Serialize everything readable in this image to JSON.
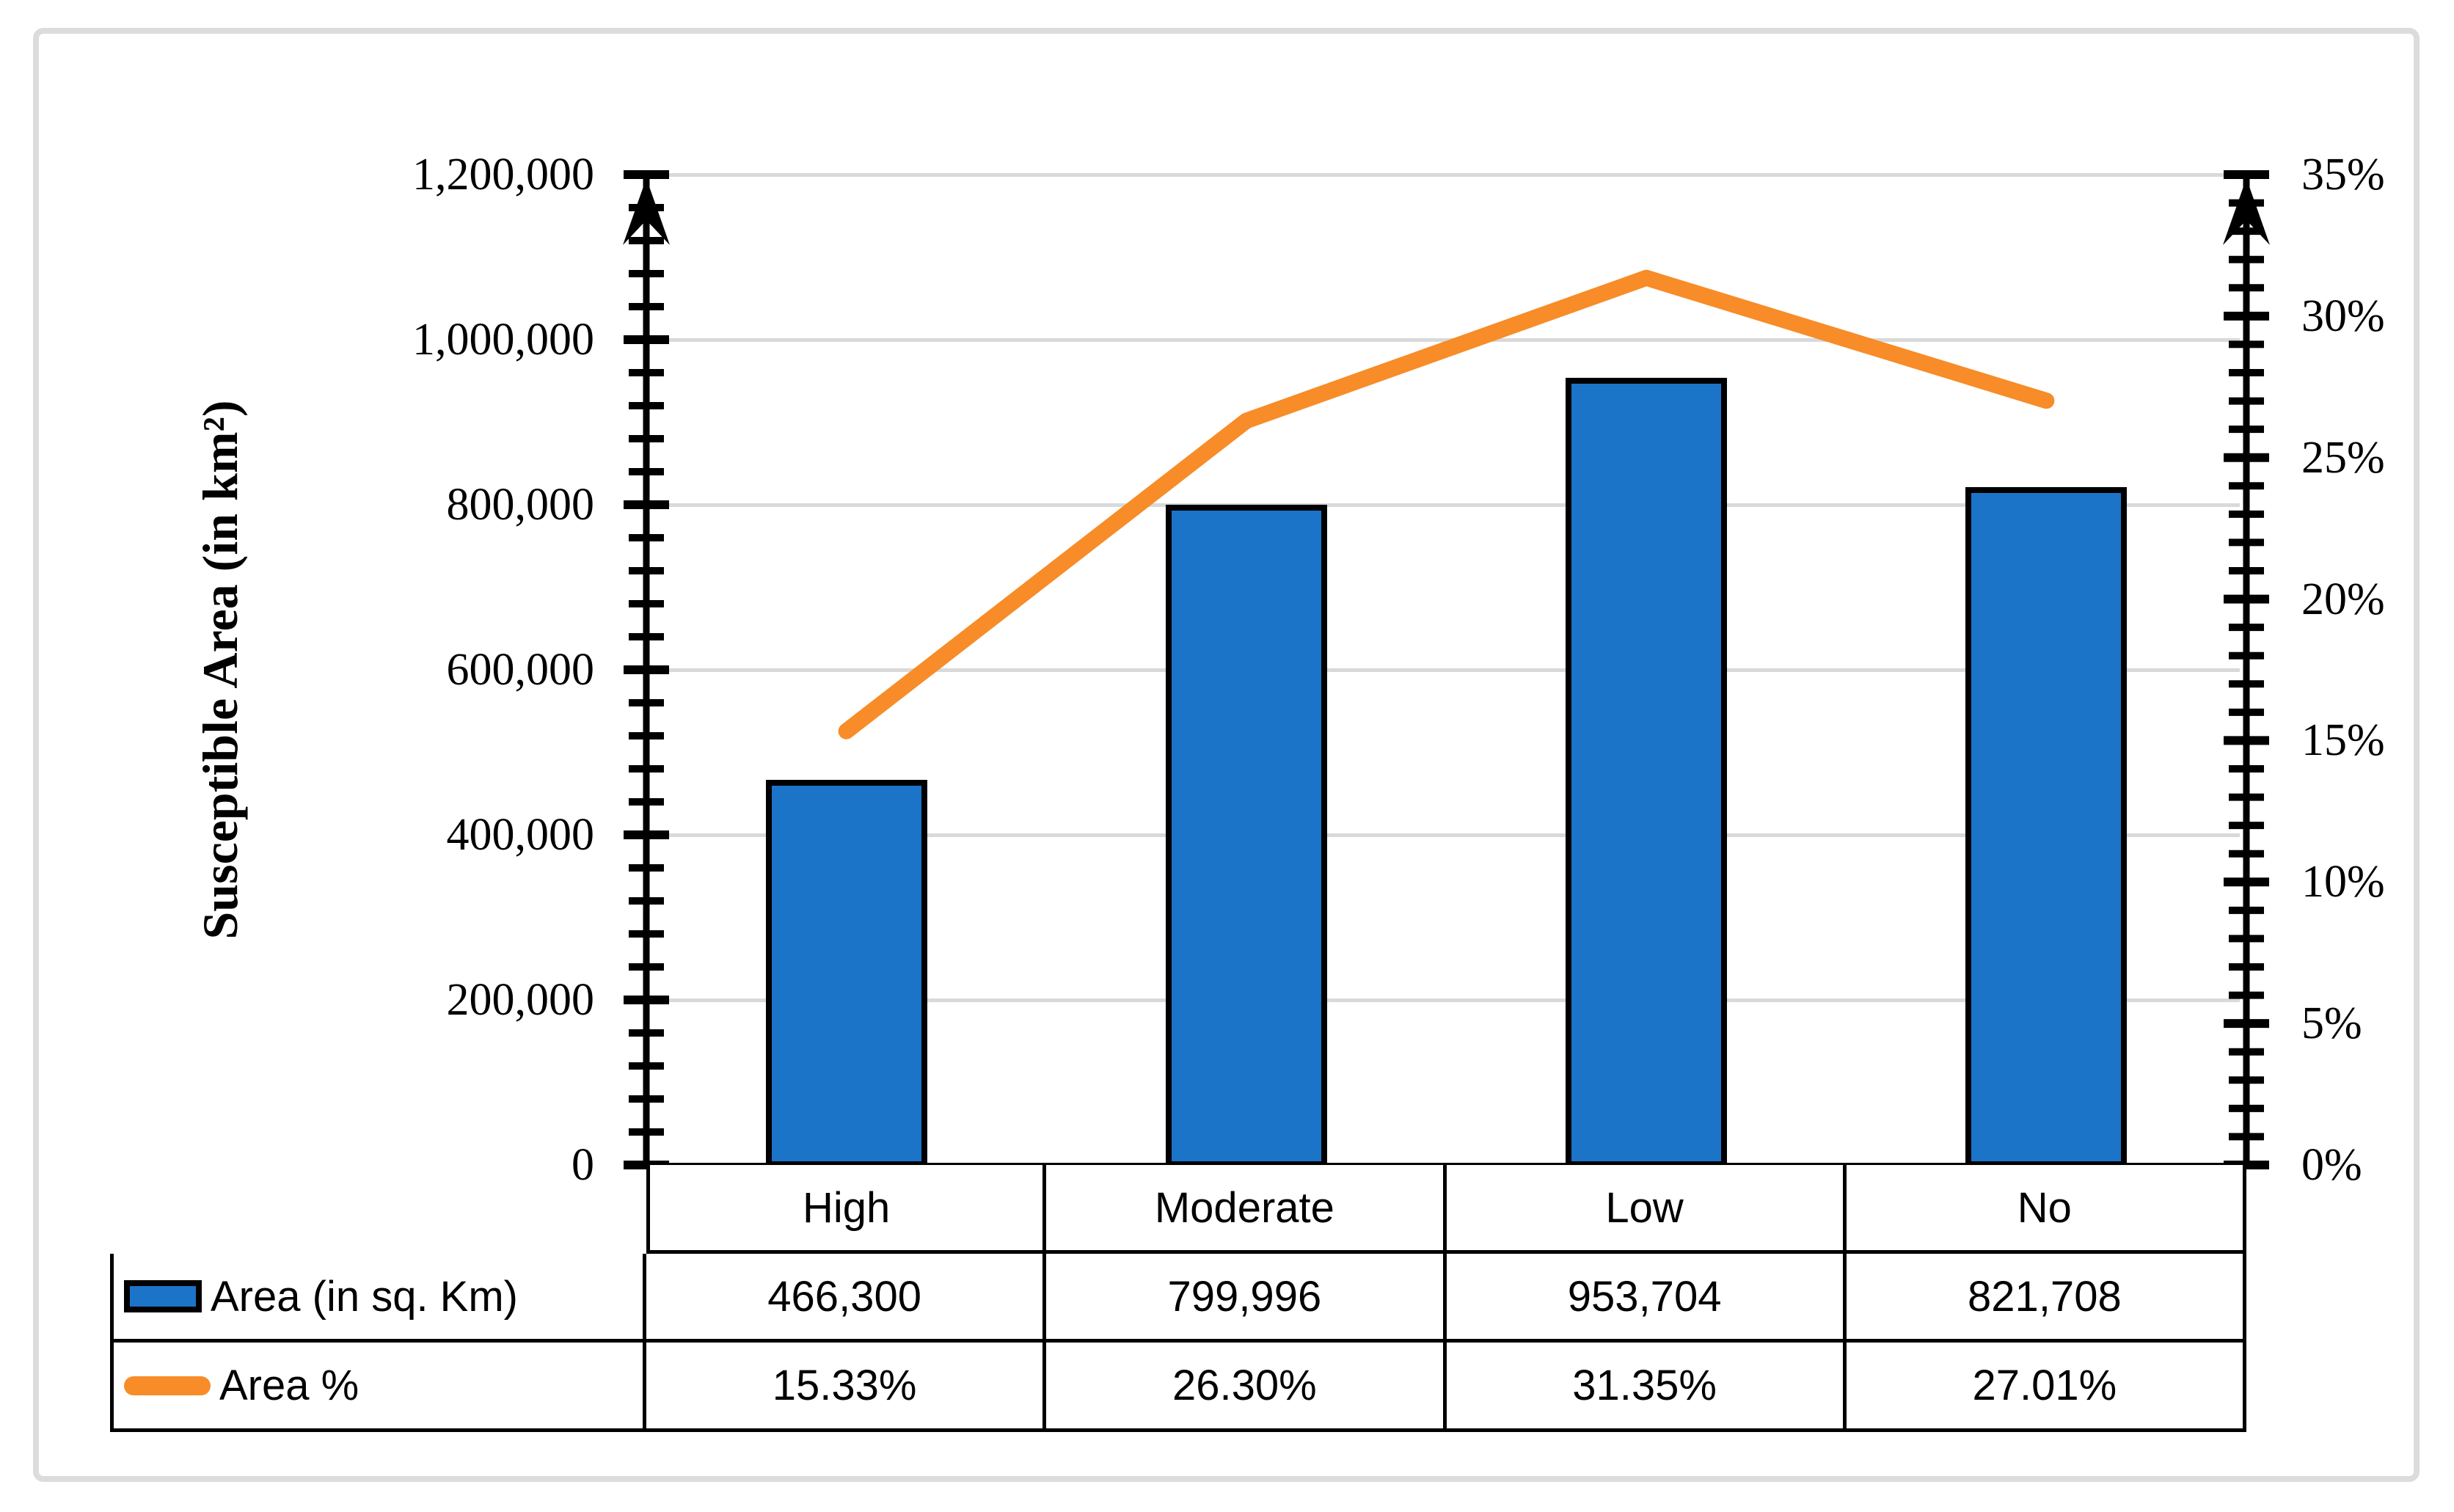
{
  "chart_data": {
    "type": "combo-bar-line",
    "title": "",
    "categories": [
      "High",
      "Moderate",
      "Low",
      "No"
    ],
    "series": [
      {
        "name": "Area (in sq. Km)",
        "chart_type": "bar",
        "axis": "left",
        "color": "#1b74c8",
        "values": [
          466300,
          799996,
          953704,
          821708
        ],
        "value_labels": [
          "466,300",
          "799,996",
          "953,704",
          "821,708"
        ]
      },
      {
        "name": "Area %",
        "chart_type": "line",
        "axis": "right",
        "color": "#f78c28",
        "values": [
          15.33,
          26.3,
          31.35,
          27.01
        ],
        "value_labels": [
          "15.33%",
          "26.30%",
          "31.35%",
          "27.01%"
        ]
      }
    ],
    "left_axis": {
      "title": "Susceptible Area (in km²)",
      "min": 0,
      "max": 1200000,
      "major_step": 200000,
      "minor_step": 40000,
      "tick_labels": [
        "0",
        "200,000",
        "400,000",
        "600,000",
        "800,000",
        "1,000,000",
        "1,200,000"
      ]
    },
    "right_axis": {
      "title": "",
      "min": 0,
      "max": 35,
      "major_step": 5,
      "minor_step": 1,
      "tick_labels": [
        "0%",
        "5%",
        "10%",
        "15%",
        "20%",
        "25%",
        "30%",
        "35%"
      ]
    },
    "grid": "horizontal-major",
    "legend_position": "table-left-column"
  },
  "colors": {
    "bar_fill": "#1b74c8",
    "bar_border": "#000000",
    "line": "#f78c28",
    "gridline": "#d9d9d9",
    "axis": "#000000",
    "figure_border": "#dcdcdc",
    "background": "#ffffff",
    "text": "#000000"
  }
}
